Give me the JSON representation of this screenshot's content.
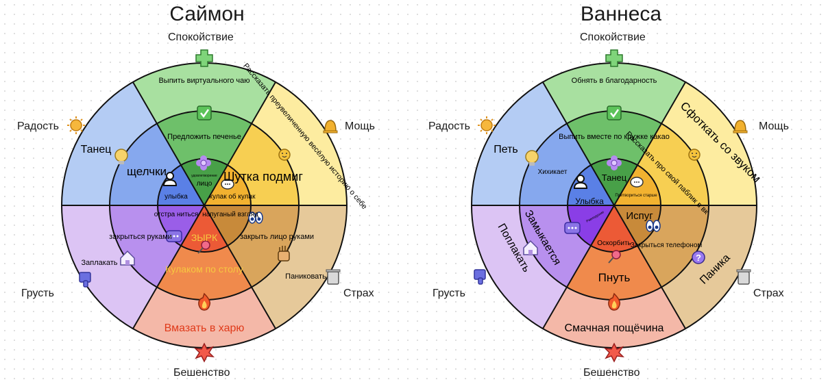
{
  "boards": [
    {
      "title": "Саймон",
      "emotions": {
        "calm": "Спокойствие",
        "joy": "Радость",
        "power": "Мощь",
        "sadness": "Грусть",
        "fear": "Страх",
        "rage": "Бешенство"
      },
      "outer": {
        "calm": "Выпить виртуального чаю",
        "power": "Рассказать преувеличенную весёлую историю о себе",
        "joy": "Танец",
        "sadness": "Заплакать",
        "fear": "Паниковать",
        "rage": "Вмазать в харю"
      },
      "middle": {
        "calm": "Предложить печенье",
        "power": "Шутка подмиг",
        "joy": "щелчки",
        "sadness": "закрыться руками",
        "fear": "закрыть лицо руками",
        "rage": "Кулаком по столу"
      },
      "inner": {
        "calm": "лицо",
        "calm_small": "удовлетворение",
        "power": "кулак об кулак",
        "joy": "улыбка",
        "sadness": "отстра ниться",
        "fear": "напуганый взгляд",
        "rage": "ЗЫРК"
      }
    },
    {
      "title": "Ваннеса",
      "emotions": {
        "calm": "Спокойствие",
        "joy": "Радость",
        "power": "Мощь",
        "sadness": "Грусть",
        "fear": "Страх",
        "rage": "Бешенство"
      },
      "outer": {
        "calm": "Обнять в благодарность",
        "power": "Сфоткать со звуком",
        "joy": "Петь",
        "sadness": "Поплакать",
        "fear": "Паника",
        "rage": "Смачная пощёчина"
      },
      "middle": {
        "calm": "Выпить вместе по кружке какао",
        "power": "Рассказать про свой паблик в вк",
        "joy": "Хихикает",
        "sadness": "Замыкается",
        "fear": "Закрыться телефоном",
        "rage": "Пнуть"
      },
      "inner": {
        "calm": "Танец",
        "power": "Притвориться старше",
        "joy": "Улыбка",
        "sadness": "Равнодушие",
        "fear": "Испуг",
        "rage": "Оскорбить"
      }
    }
  ]
}
